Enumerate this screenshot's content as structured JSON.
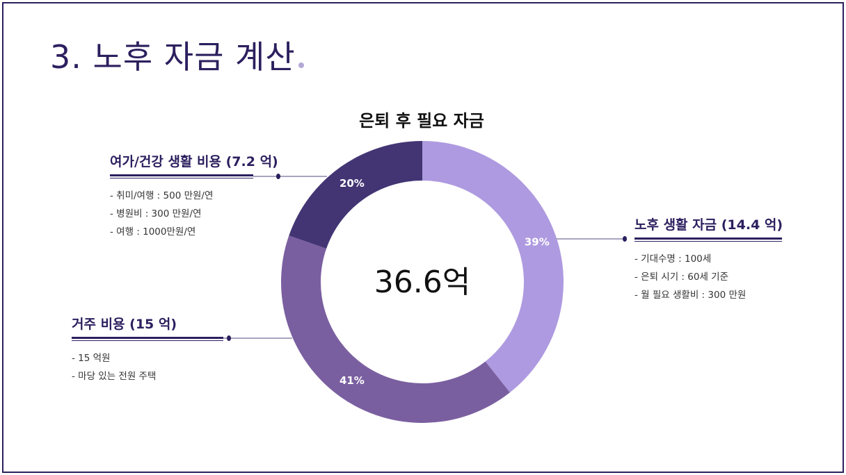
{
  "page": {
    "title": "3. 노후 자금 계산"
  },
  "chart_data": {
    "type": "pie",
    "title": "은퇴 후 필요 자금",
    "center_label": "36.6억",
    "series": [
      {
        "name": "노후 생활 자금 (14.4 억)",
        "value": 14.4,
        "percent_label": "39%",
        "color": "#ae9ae0"
      },
      {
        "name": "거주 비용 (15 억)",
        "value": 15,
        "percent_label": "41%",
        "color": "#7a5fa0"
      },
      {
        "name": "여가/건강 생활 비용 (7.2 억)",
        "value": 7.2,
        "percent_label": "20%",
        "color": "#433574"
      }
    ]
  },
  "callouts": {
    "leisure": {
      "title": "여가/건강 생활 비용 (7.2 억)",
      "items": [
        "- 취미/여행 : 500 만원/연",
        "- 병원비 : 300 만원/연",
        "- 여행 : 1000만원/연"
      ]
    },
    "living": {
      "title": "노후 생활 자금 (14.4 억)",
      "items": [
        "- 기대수명 : 100세",
        "- 은퇴 시기 : 60세 기준",
        "- 월 필요 생활비 : 300 만원"
      ]
    },
    "housing": {
      "title": "거주 비용 (15 억)",
      "items": [
        "- 15 억원",
        "- 마당 있는 전원 주택"
      ]
    }
  },
  "colors": {
    "frame": "#2c1f5e",
    "leader_line": "#a9a3c0"
  }
}
